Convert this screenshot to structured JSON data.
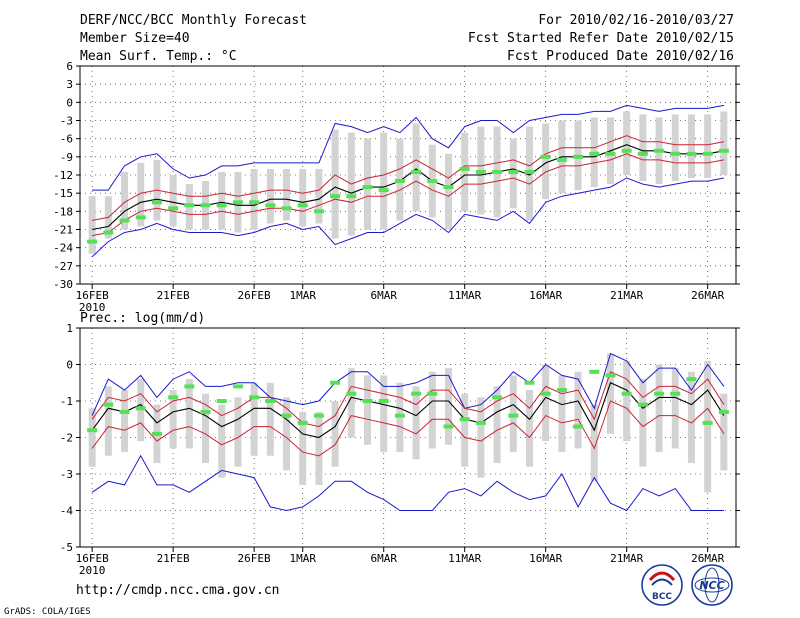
{
  "header": {
    "title": "DERF/NCC/BCC Monthly Forecast",
    "member_size": "Member Size=40",
    "variable": "Mean Surf. Temp.: °C",
    "period": "For 2010/02/16-2010/03/27",
    "started": "Fcst Started Refer Date 2010/02/15",
    "produced": "Fcst Produced Date 2010/02/16"
  },
  "footer": {
    "url": "http://cmdp.ncc.cma.gov.cn",
    "credit": "GrADS: COLA/IGES",
    "logo_left": "BCC",
    "logo_right": "NCC"
  },
  "colors": {
    "ensemble_bar": "#d3d3d3",
    "observed": "#55e055",
    "mean": "#000000",
    "inner_band": "#cc2233",
    "outer_band": "#1a1acc",
    "grid": "#555555"
  },
  "chart_data": [
    {
      "type": "line",
      "title": "Mean Surf. Temp.: °C",
      "days": 40,
      "x_tick_labels": [
        "16FEB",
        "21FEB",
        "26FEB",
        "1MAR",
        "6MAR",
        "11MAR",
        "16MAR",
        "21MAR",
        "26MAR"
      ],
      "x_tick_days": [
        0,
        5,
        10,
        13,
        18,
        23,
        28,
        33,
        38
      ],
      "x_year_label": "2010",
      "ylim": [
        -30,
        6
      ],
      "yticks": [
        6,
        3,
        0,
        -3,
        -6,
        -9,
        -12,
        -15,
        -18,
        -21,
        -24,
        -27,
        -30
      ],
      "series": [
        {
          "name": "mean",
          "values": [
            -21,
            -20.5,
            -18,
            -16.5,
            -16,
            -16.5,
            -17,
            -17,
            -16.5,
            -17,
            -17,
            -16,
            -16,
            -16.5,
            -16,
            -14,
            -15,
            -14,
            -14,
            -13,
            -11,
            -13,
            -14,
            -12,
            -12,
            -11.5,
            -11,
            -12,
            -10,
            -9,
            -9,
            -9,
            -8,
            -7,
            -8,
            -8,
            -8.5,
            -8.5,
            -8.5,
            -8
          ]
        },
        {
          "name": "p25",
          "values": [
            -22,
            -21.5,
            -19.5,
            -18,
            -17.5,
            -18,
            -18.5,
            -18.5,
            -18,
            -18.5,
            -18,
            -17.5,
            -17.5,
            -18,
            -17,
            -16,
            -16.5,
            -15.5,
            -15.5,
            -14.5,
            -13,
            -14.5,
            -15.5,
            -13.5,
            -13.5,
            -13,
            -12.5,
            -13.5,
            -11.5,
            -10.5,
            -10.5,
            -10,
            -9.5,
            -8.5,
            -9.5,
            -9.5,
            -10,
            -10,
            -10,
            -9.5
          ]
        },
        {
          "name": "p75",
          "values": [
            -19.5,
            -19,
            -16.5,
            -15,
            -14.5,
            -15,
            -15.5,
            -15.5,
            -15,
            -15.5,
            -15,
            -14.5,
            -14.5,
            -15,
            -14.5,
            -12,
            -13.5,
            -12.5,
            -12,
            -11,
            -9.5,
            -11,
            -12.5,
            -10.5,
            -10.5,
            -10,
            -9.5,
            -10.5,
            -8.5,
            -7.5,
            -7.5,
            -7.5,
            -6.5,
            -5.5,
            -6.5,
            -6.5,
            -7,
            -7,
            -7,
            -6.5
          ]
        },
        {
          "name": "min",
          "values": [
            -25.5,
            -23,
            -21.5,
            -21,
            -20,
            -21,
            -21.5,
            -21.5,
            -21.5,
            -22,
            -21.5,
            -20.5,
            -20,
            -21,
            -20.5,
            -23.5,
            -22.5,
            -21.5,
            -21.5,
            -20,
            -18.5,
            -19.5,
            -21.5,
            -18.5,
            -19,
            -19.5,
            -18,
            -20,
            -16.5,
            -15.5,
            -15,
            -14.5,
            -14,
            -12.5,
            -13.5,
            -14,
            -13.5,
            -13,
            -13,
            -12.5
          ]
        },
        {
          "name": "max",
          "values": [
            -14.5,
            -14.5,
            -10.5,
            -9,
            -8.5,
            -11,
            -12.5,
            -12,
            -10.5,
            -10.5,
            -10,
            -10,
            -10,
            -10,
            -10,
            -3.5,
            -4,
            -5,
            -4,
            -5,
            -2.5,
            -6,
            -7.5,
            -4,
            -3,
            -3,
            -5,
            -3,
            -2.5,
            -2,
            -2,
            -1.5,
            -1.5,
            -0.5,
            -1,
            -1.5,
            -1,
            -1,
            -1,
            -0.5
          ]
        },
        {
          "name": "observed",
          "values": [
            -23,
            -21.5,
            -19.5,
            -19,
            -16.5,
            -17.5,
            -17,
            -17,
            -17,
            -16.5,
            -16.5,
            -17,
            -17.5,
            -17,
            -18,
            -15.5,
            -15.5,
            -14,
            -14.5,
            -13,
            -11.5,
            -13,
            -14,
            -11,
            -11.5,
            -11.5,
            -11.5,
            -11.5,
            -9,
            -9.5,
            -9,
            -8.5,
            -8.5,
            -8,
            -8.5,
            -8,
            -8.5,
            -8.5,
            -8.5,
            -8
          ]
        },
        {
          "name": "bar_low",
          "values": [
            -25,
            -22.5,
            -21,
            -20.5,
            -19.5,
            -20.5,
            -21,
            -21,
            -21,
            -21.5,
            -21,
            -20,
            -19.5,
            -20.5,
            -20,
            -22.5,
            -22,
            -21,
            -21,
            -19.5,
            -18,
            -19,
            -21,
            -18,
            -18.5,
            -19,
            -17.5,
            -19.5,
            -16,
            -15,
            -14.5,
            -14,
            -13.5,
            -12,
            -13,
            -13.5,
            -13,
            -12.5,
            -12.5,
            -12
          ]
        },
        {
          "name": "bar_high",
          "values": [
            -15.5,
            -15.5,
            -11.5,
            -10,
            -9.5,
            -12,
            -13.5,
            -13,
            -11.5,
            -11.5,
            -11,
            -11,
            -11,
            -11,
            -11,
            -4.5,
            -5,
            -6,
            -5,
            -6,
            -3.5,
            -7,
            -8.5,
            -5,
            -4,
            -4,
            -6,
            -4,
            -3.5,
            -3,
            -3,
            -2.5,
            -2.5,
            -1.5,
            -2,
            -2.5,
            -2,
            -2,
            -2,
            -1.5
          ]
        }
      ]
    },
    {
      "type": "line",
      "title": "Prec.: log(mm/d)",
      "days": 40,
      "x_tick_labels": [
        "16FEB",
        "21FEB",
        "26FEB",
        "1MAR",
        "6MAR",
        "11MAR",
        "16MAR",
        "21MAR",
        "26MAR"
      ],
      "x_tick_days": [
        0,
        5,
        10,
        13,
        18,
        23,
        28,
        33,
        38
      ],
      "x_year_label": "2010",
      "ylim": [
        -5,
        1
      ],
      "yticks": [
        1,
        0,
        -1,
        -2,
        -3,
        -4,
        -5
      ],
      "series": [
        {
          "name": "mean",
          "values": [
            -1.8,
            -1.2,
            -1.3,
            -1.1,
            -1.6,
            -1.3,
            -1.2,
            -1.4,
            -1.7,
            -1.5,
            -1.2,
            -1.2,
            -1.5,
            -1.9,
            -2,
            -1.7,
            -0.9,
            -1,
            -1.1,
            -1.2,
            -1.4,
            -1,
            -1,
            -1.5,
            -1.6,
            -1.3,
            -1.1,
            -1.5,
            -0.9,
            -1.1,
            -1,
            -1.8,
            -0.5,
            -0.7,
            -1.2,
            -0.9,
            -0.9,
            -1.1,
            -0.7,
            -1.4
          ]
        },
        {
          "name": "p25",
          "values": [
            -2.3,
            -1.7,
            -1.8,
            -1.6,
            -2.1,
            -1.8,
            -1.7,
            -1.9,
            -2.2,
            -2,
            -1.7,
            -1.7,
            -2,
            -2.4,
            -2.5,
            -2.2,
            -1.4,
            -1.5,
            -1.6,
            -1.7,
            -1.9,
            -1.5,
            -1.5,
            -2,
            -2.1,
            -1.8,
            -1.6,
            -2,
            -1.4,
            -1.6,
            -1.5,
            -2.3,
            -1,
            -1.2,
            -1.7,
            -1.4,
            -1.4,
            -1.6,
            -1.2,
            -1.9
          ]
        },
        {
          "name": "p75",
          "values": [
            -1.5,
            -0.9,
            -1,
            -0.8,
            -1.3,
            -1,
            -0.9,
            -1.1,
            -1.4,
            -1.2,
            -0.9,
            -0.9,
            -1.2,
            -1.6,
            -1.7,
            -1.4,
            -0.6,
            -0.7,
            -0.8,
            -0.9,
            -1.1,
            -0.7,
            -0.7,
            -1.2,
            -1.3,
            -1,
            -0.8,
            -1.2,
            -0.6,
            -0.8,
            -0.7,
            -1.5,
            -0.2,
            -0.4,
            -0.9,
            -0.6,
            -0.6,
            -0.8,
            -0.4,
            -1.1
          ]
        },
        {
          "name": "min",
          "values": [
            -3.5,
            -3.2,
            -3.3,
            -2.5,
            -3.3,
            -3.3,
            -3.5,
            -3.2,
            -2.9,
            -3,
            -3.1,
            -3.9,
            -4,
            -3.9,
            -3.6,
            -3.2,
            -3.2,
            -3.5,
            -3.7,
            -4,
            -4,
            -4,
            -3.5,
            -3.4,
            -3.6,
            -3.2,
            -3.5,
            -3.7,
            -3.6,
            -3,
            -3.9,
            -3.1,
            -3.8,
            -4,
            -3.4,
            -3.6,
            -3.4,
            -4,
            -4,
            -4
          ]
        },
        {
          "name": "max",
          "values": [
            -1.4,
            -0.4,
            -0.7,
            -0.3,
            -0.9,
            -0.4,
            -0.2,
            -0.6,
            -0.6,
            -0.5,
            -0.5,
            -0.9,
            -1,
            -1.1,
            -1,
            -0.5,
            -0.2,
            -0.2,
            -0.6,
            -0.6,
            -0.5,
            -0.3,
            -0.3,
            -1.2,
            -1.1,
            -0.7,
            -0.2,
            -0.5,
            0,
            -0.3,
            -0.4,
            -1.2,
            0.3,
            0.1,
            -0.5,
            -0.1,
            -0.1,
            -0.7,
            0,
            -0.6
          ]
        },
        {
          "name": "observed",
          "values": [
            -1.8,
            -1.1,
            -1.3,
            -1.2,
            -1.9,
            -0.9,
            -0.6,
            -1.3,
            -1,
            -0.6,
            -0.9,
            -1,
            -1.4,
            -1.6,
            -1.4,
            -0.5,
            -0.8,
            -1,
            -1,
            -1.4,
            -0.8,
            -0.8,
            -1.7,
            -1.5,
            -1.6,
            -0.9,
            -1.4,
            -0.5,
            -0.8,
            -0.7,
            -1.7,
            -0.2,
            -0.3,
            -0.8,
            -1.1,
            -0.8,
            -0.8,
            -0.4,
            -1.6,
            -1.3
          ]
        },
        {
          "name": "bar_low",
          "values": [
            -2.8,
            -2.5,
            -2.4,
            -2.1,
            -2.7,
            -2.3,
            -2.3,
            -2.7,
            -3.1,
            -2.8,
            -2.5,
            -2.5,
            -2.9,
            -3.3,
            -3.3,
            -2.8,
            -2,
            -2.2,
            -2.4,
            -2.4,
            -2.6,
            -2.3,
            -2.2,
            -2.8,
            -3.1,
            -2.7,
            -2.4,
            -2.8,
            -2.1,
            -2.4,
            -2.3,
            -3.2,
            -1.9,
            -2.1,
            -2.8,
            -2.4,
            -2.3,
            -2.7,
            -3.5,
            -2.9
          ]
        },
        {
          "name": "bar_high",
          "values": [
            -1.2,
            -0.6,
            -0.7,
            -0.4,
            -1.1,
            -0.7,
            -0.4,
            -0.8,
            -1.1,
            -0.9,
            -0.5,
            -0.5,
            -0.9,
            -1.3,
            -1.3,
            -1,
            -0.1,
            -0.3,
            -0.3,
            -0.5,
            -0.6,
            -0.2,
            -0.1,
            -0.8,
            -0.9,
            -0.6,
            -0.3,
            -0.7,
            0,
            -0.3,
            -0.2,
            -1.1,
            0.3,
            0.1,
            -0.4,
            0,
            -0.1,
            -0.2,
            0.1,
            -0.8
          ]
        }
      ]
    }
  ]
}
